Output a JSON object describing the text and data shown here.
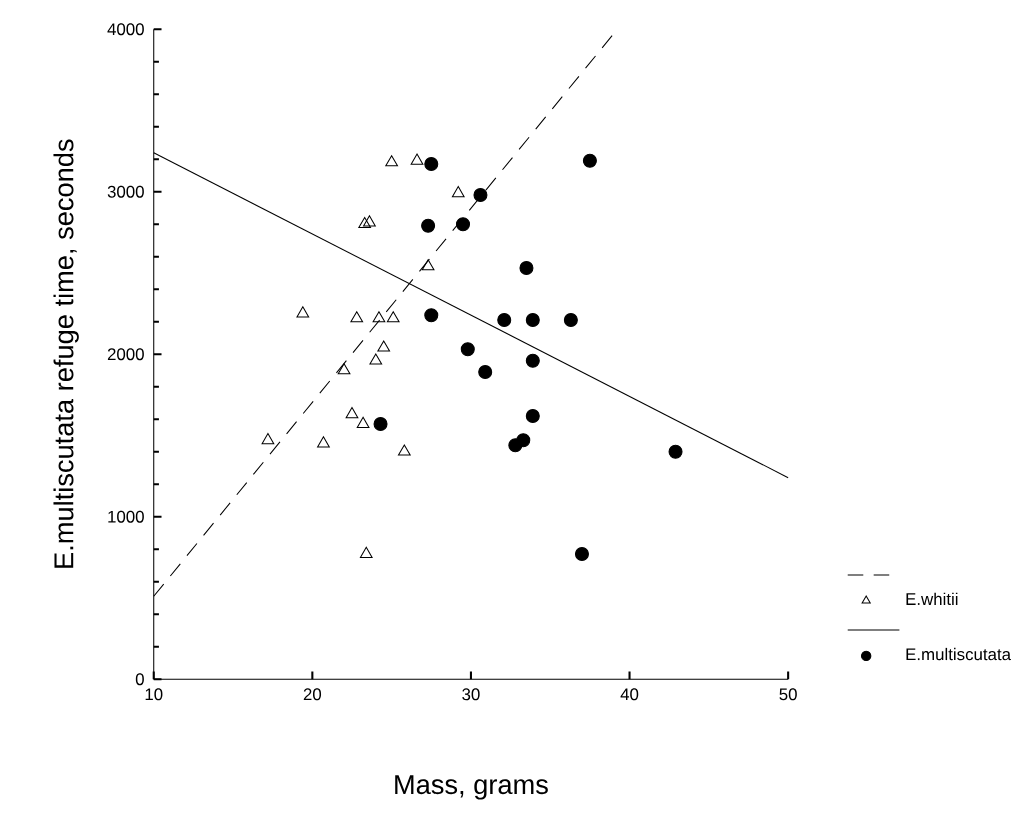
{
  "chart_data": {
    "type": "scatter",
    "xlabel": "Mass, grams",
    "ylabel": "E.multiscutata refuge time, seconds",
    "xlim": [
      10,
      50
    ],
    "xticks": [
      10,
      20,
      30,
      40,
      50
    ],
    "ylim": [
      0,
      4000
    ],
    "yticks": [
      0,
      1000,
      2000,
      3000,
      4000
    ],
    "grid": false,
    "legend": "bottom right",
    "series": [
      {
        "name": "E.whitii",
        "marker": "triangle",
        "color": "#000000",
        "x": [
          17.2,
          19.4,
          20.7,
          22.0,
          22.5,
          23.2,
          22.8,
          23.3,
          23.6,
          23.4,
          24.0,
          24.2,
          24.5,
          25.1,
          25.8,
          25.0,
          26.6,
          27.3,
          29.2
        ],
        "values": [
          1470,
          2250,
          1450,
          1900,
          1630,
          1570,
          2220,
          2800,
          2810,
          770,
          1960,
          2220,
          2040,
          2220,
          1400,
          3180,
          3190,
          2540,
          2990
        ]
      },
      {
        "name": "E.multiscutata",
        "marker": "circle",
        "color": "#000000",
        "x": [
          27.5,
          30.6,
          27.3,
          29.5,
          33.5,
          27.5,
          32.1,
          33.9,
          36.3,
          29.8,
          30.9,
          33.9,
          33.9,
          24.3,
          32.8,
          33.3,
          37.0,
          37.5,
          42.9
        ],
        "values": [
          3170,
          2980,
          2790,
          2800,
          2530,
          2240,
          2210,
          2210,
          2210,
          2030,
          1890,
          1960,
          1620,
          1570,
          1440,
          1470,
          770,
          3190,
          1400
        ]
      },
      {
        "type": "line",
        "line_style": "dashed",
        "color": "#000000",
        "x": [
          10,
          38.9
        ],
        "values": [
          510,
          3960
        ]
      },
      {
        "type": "line",
        "line_style": "solid",
        "color": "#000000",
        "x": [
          10,
          50
        ],
        "values": [
          3240,
          1240
        ]
      }
    ]
  }
}
